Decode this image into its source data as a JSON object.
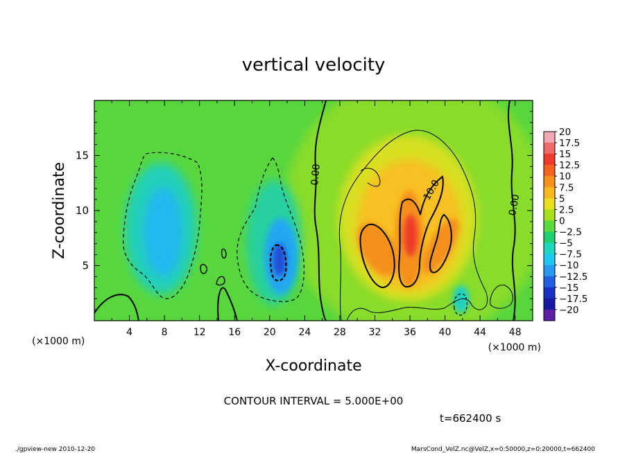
{
  "chart_data": {
    "type": "heatmap",
    "title": "vertical velocity",
    "xlabel": "X-coordinate",
    "ylabel": "Z-coordinate",
    "x_unit": "(×1000 m)",
    "y_unit": "(×1000 m)",
    "xlim": [
      0,
      50
    ],
    "ylim": [
      0,
      20
    ],
    "x_ticks": [
      4,
      8,
      12,
      16,
      20,
      24,
      28,
      32,
      36,
      40,
      44,
      48
    ],
    "y_ticks": [
      5,
      10,
      15
    ],
    "contour_interval_text": "CONTOUR INTERVAL = 5.000E+00",
    "contour_labels": [
      "0.00",
      "10.0",
      "0.00"
    ],
    "time_text": "t=662400 s",
    "colorbar": {
      "levels": [
        20,
        17.5,
        15,
        12.5,
        10,
        7.5,
        5,
        2.5,
        0,
        -2.5,
        -5,
        -7.5,
        -10,
        -12.5,
        -15,
        -17.5,
        -20
      ],
      "labels": [
        "20",
        "17.5",
        "15",
        "12.5",
        "10",
        "7.5",
        "5",
        "2.5",
        "0",
        "−2.5",
        "−5",
        "−7.5",
        "−10",
        "−12.5",
        "−15",
        "−17.5",
        "−20"
      ],
      "colors": [
        "#f4a8b4",
        "#f06a6a",
        "#ee3a2a",
        "#f26420",
        "#f4901e",
        "#f8b820",
        "#e8e020",
        "#a8e020",
        "#5cd840",
        "#20d070",
        "#20d8c0",
        "#20c8f0",
        "#2898f0",
        "#2060e0",
        "#1830c0",
        "#1818a0",
        "#6020a8"
      ]
    },
    "features": [
      {
        "label": "downdraft",
        "x": 8.5,
        "z": 8.5,
        "value": -7.5
      },
      {
        "label": "downdraft",
        "x": 21,
        "z": 6,
        "value": -12.5
      },
      {
        "label": "updraft",
        "x": 36,
        "z": 8,
        "value": 12.5
      },
      {
        "label": "updraft",
        "x": 32.5,
        "z": 7.5,
        "value": 10
      },
      {
        "label": "updraft",
        "x": 39,
        "z": 7.5,
        "value": 10
      },
      {
        "label": "downdraft",
        "x": 42,
        "z": 2,
        "value": -5
      }
    ]
  },
  "footer": {
    "left": "./gpview-new 2010-12-20",
    "right": "MarsCond_VelZ.nc@VelZ,x=0:50000,z=0:20000,t=662400"
  }
}
